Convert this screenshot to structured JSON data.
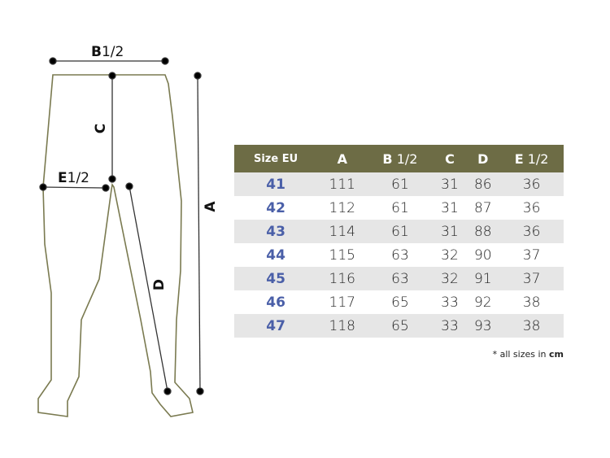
{
  "diagram": {
    "labels": {
      "b": "B",
      "b_frac": "1/2",
      "c": "C",
      "e": "E",
      "e_frac": "1/2",
      "d": "D",
      "a": "A"
    },
    "outline_color": "#7a7a50"
  },
  "table": {
    "headers": [
      {
        "main": "Size EU",
        "frac": ""
      },
      {
        "main": "A",
        "frac": ""
      },
      {
        "main": "B",
        "frac": " 1/2"
      },
      {
        "main": "C",
        "frac": ""
      },
      {
        "main": "D",
        "frac": ""
      },
      {
        "main": "E",
        "frac": " 1/2"
      }
    ],
    "rows": [
      [
        "41",
        "111",
        "61",
        "31",
        "86",
        "36"
      ],
      [
        "42",
        "112",
        "61",
        "31",
        "87",
        "36"
      ],
      [
        "43",
        "114",
        "61",
        "31",
        "88",
        "36"
      ],
      [
        "44",
        "115",
        "63",
        "32",
        "90",
        "37"
      ],
      [
        "45",
        "116",
        "63",
        "32",
        "91",
        "37"
      ],
      [
        "46",
        "117",
        "65",
        "33",
        "92",
        "38"
      ],
      [
        "47",
        "118",
        "65",
        "33",
        "93",
        "38"
      ]
    ],
    "header_color": "#6d6c45",
    "size_color": "#4a5fa8"
  },
  "note": {
    "text": "* all sizes in ",
    "unit": "cm"
  }
}
